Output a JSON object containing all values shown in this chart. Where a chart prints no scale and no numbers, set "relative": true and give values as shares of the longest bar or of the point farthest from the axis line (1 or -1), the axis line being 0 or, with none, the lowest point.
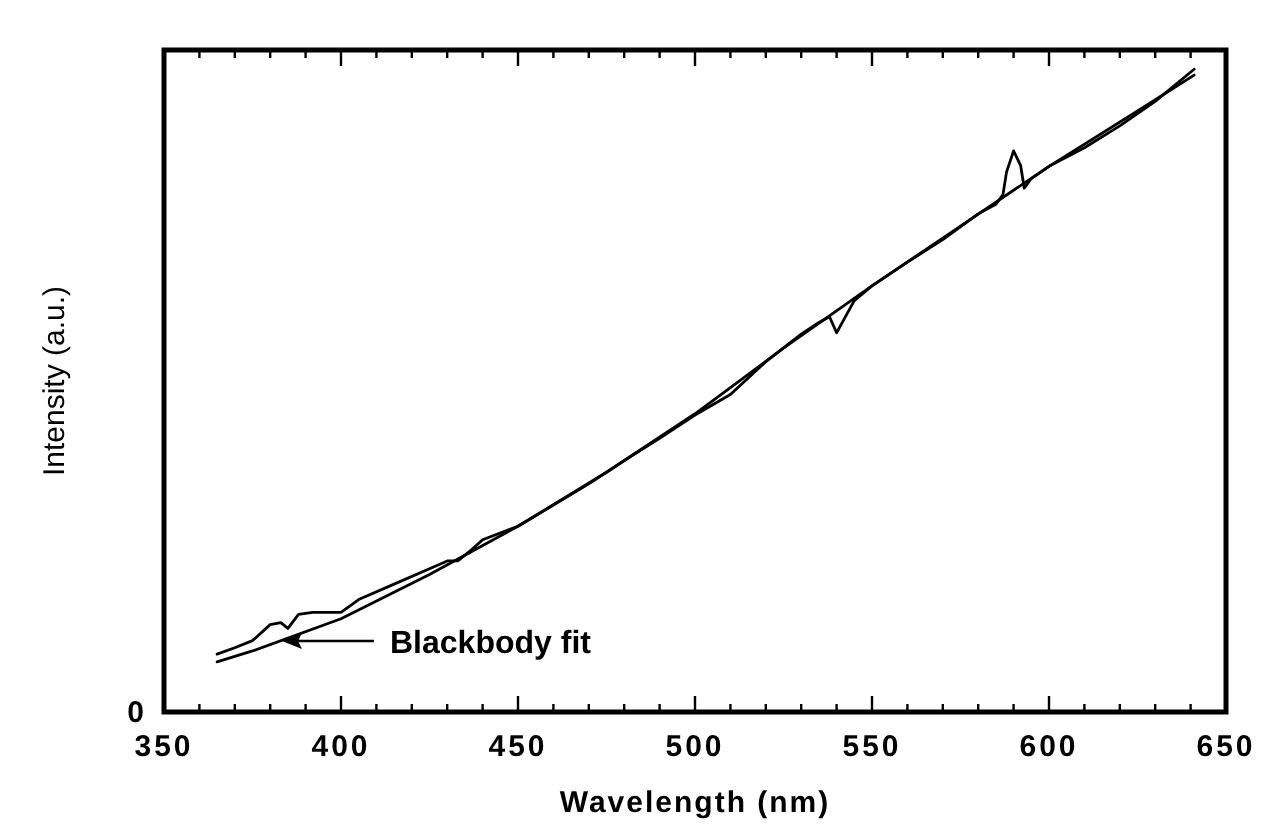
{
  "chart_data": {
    "type": "line",
    "relative": true,
    "xlabel": "Wavelength (nm)",
    "ylabel": "Intensity (a.u.)",
    "xlim": [
      350,
      650
    ],
    "xticks": [
      350,
      {
        "value": 360,
        "label": null
      },
      {
        "value": 370,
        "label": null
      },
      {
        "value": 380,
        "label": null
      },
      {
        "value": 390,
        "label": null
      },
      400,
      {
        "value": 410,
        "label": null
      },
      {
        "value": 420,
        "label": null
      },
      {
        "value": 430,
        "label": null
      },
      {
        "value": 440,
        "label": null
      },
      450,
      {
        "value": 460,
        "label": null
      },
      {
        "value": 470,
        "label": null
      },
      {
        "value": 480,
        "label": null
      },
      {
        "value": 490,
        "label": null
      },
      500,
      {
        "value": 510,
        "label": null
      },
      {
        "value": 520,
        "label": null
      },
      {
        "value": 530,
        "label": null
      },
      {
        "value": 540,
        "label": null
      },
      550,
      {
        "value": 560,
        "label": null
      },
      {
        "value": 570,
        "label": null
      },
      {
        "value": 580,
        "label": null
      },
      {
        "value": 590,
        "label": null
      },
      600,
      {
        "value": 610,
        "label": null
      },
      {
        "value": 620,
        "label": null
      },
      {
        "value": 630,
        "label": null
      },
      {
        "value": 640,
        "label": null
      },
      650
    ],
    "series": [
      {
        "color": "#000000",
        "x": [
          365,
          370,
          375,
          380,
          383,
          385,
          388,
          392,
          400,
          405,
          415,
          425,
          430,
          433,
          437,
          440,
          450,
          460,
          470,
          480,
          490,
          500,
          505,
          510,
          520,
          530,
          535,
          538,
          540,
          542,
          545,
          550,
          560,
          570,
          580,
          585,
          587,
          588,
          590,
          592,
          593,
          595,
          600,
          610,
          620,
          630,
          641
        ],
        "values": [
          0.09,
          0.1,
          0.111,
          0.136,
          0.139,
          0.13,
          0.152,
          0.155,
          0.155,
          0.175,
          0.199,
          0.223,
          0.235,
          0.235,
          0.253,
          0.268,
          0.289,
          0.322,
          0.355,
          0.391,
          0.426,
          0.462,
          0.478,
          0.494,
          0.545,
          0.588,
          0.606,
          0.615,
          0.59,
          0.61,
          0.64,
          0.663,
          0.7,
          0.735,
          0.775,
          0.79,
          0.805,
          0.84,
          0.873,
          0.85,
          0.815,
          0.83,
          0.849,
          0.878,
          0.912,
          0.95,
          1.0
        ]
      },
      {
        "color": "#000000",
        "x": [
          365,
          375,
          400,
          425,
          450,
          475,
          500,
          525,
          550,
          575,
          600,
          625,
          641
        ],
        "values": [
          0.078,
          0.095,
          0.145,
          0.214,
          0.289,
          0.373,
          0.464,
          0.566,
          0.663,
          0.756,
          0.849,
          0.935,
          0.991
        ]
      }
    ],
    "annotations": [
      "0",
      "Blackbody fit"
    ],
    "line_style": "solid"
  }
}
